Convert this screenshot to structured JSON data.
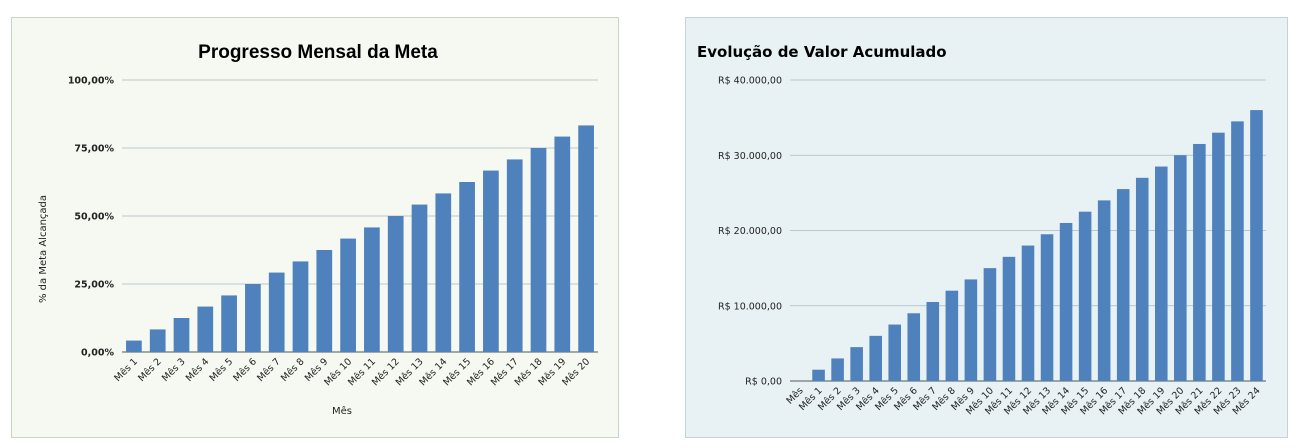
{
  "chart_data": [
    {
      "type": "bar",
      "title": "Progresso Mensal da Meta",
      "xlabel": "Mês",
      "ylabel": "% da Meta Alcançada",
      "categories": [
        "Mês 1",
        "Mês 2",
        "Mês 3",
        "Mês 4",
        "Mês 5",
        "Mês 6",
        "Mês 7",
        "Mês 8",
        "Mês 9",
        "Mês 10",
        "Mês 11",
        "Mês 12",
        "Mês 13",
        "Mês 14",
        "Mês 15",
        "Mês 16",
        "Mês 17",
        "Mês 18",
        "Mês 19",
        "Mês 20"
      ],
      "values": [
        4.2,
        8.3,
        12.5,
        16.7,
        20.8,
        25.0,
        29.2,
        33.3,
        37.5,
        41.7,
        45.8,
        50.0,
        54.2,
        58.3,
        62.5,
        66.7,
        70.8,
        75.0,
        79.2,
        83.3
      ],
      "ylim": [
        0,
        100
      ],
      "yticks": [
        0,
        25,
        50,
        75,
        100
      ],
      "ytick_labels": [
        "0,00%",
        "25,00%",
        "50,00%",
        "75,00%",
        "100,00%"
      ],
      "grid": true,
      "bar_color": "#4f81bd",
      "background": "#f5f9f1"
    },
    {
      "type": "bar",
      "title": "Evolução de Valor Acumulado",
      "xlabel": "",
      "ylabel": "",
      "categories": [
        "Mês",
        "Mês 1",
        "Mês 2",
        "Mês 3",
        "Mês 4",
        "Mês 5",
        "Mês 6",
        "Mês 7",
        "Mês 8",
        "Mês 9",
        "Mês 10",
        "Mês 11",
        "Mês 12",
        "Mês 13",
        "Mês 14",
        "Mês 15",
        "Mês 16",
        "Mês 17",
        "Mês 18",
        "Mês 19",
        "Mês 20",
        "Mês 21",
        "Mês 22",
        "Mês 23",
        "Mês 24"
      ],
      "values": [
        0,
        1500,
        3000,
        4500,
        6000,
        7500,
        9000,
        10500,
        12000,
        13500,
        15000,
        16500,
        18000,
        19500,
        21000,
        22500,
        24000,
        25500,
        27000,
        28500,
        30000,
        31500,
        33000,
        34500,
        36000
      ],
      "ylim": [
        0,
        40000
      ],
      "yticks": [
        0,
        10000,
        20000,
        30000,
        40000
      ],
      "ytick_labels": [
        "R$ 0,00",
        "R$ 10.000,00",
        "R$ 20.000,00",
        "R$ 30.000,00",
        "R$ 40.000,00"
      ],
      "grid": true,
      "bar_color": "#4f81bd",
      "background": "#e8f2f4"
    }
  ]
}
